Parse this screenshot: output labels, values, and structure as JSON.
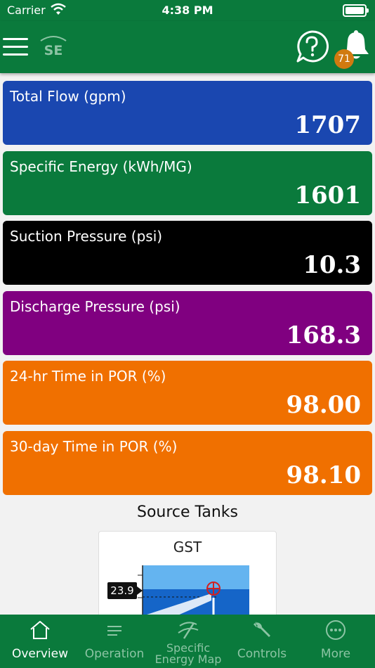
{
  "status_bar": {
    "carrier": "Carrier",
    "time": "4:38 PM"
  },
  "header": {
    "logo_text": "SE",
    "notification_count": "71"
  },
  "cards": [
    {
      "label": "Total Flow (gpm)",
      "value": "1707",
      "color": "#1a47b0"
    },
    {
      "label": "Specific Energy (kWh/MG)",
      "value": "1601",
      "color": "#0a7a3c"
    },
    {
      "label": "Suction Pressure (psi)",
      "value": "10.3",
      "color": "#000000"
    },
    {
      "label": "Discharge Pressure (psi)",
      "value": "168.3",
      "color": "#800080"
    },
    {
      "label": "24-hr Time in POR (%)",
      "value": "98.00",
      "color": "#f07000"
    },
    {
      "label": "30-day Time in POR (%)",
      "value": "98.10",
      "color": "#f07000"
    }
  ],
  "source_tanks": {
    "title": "Source Tanks",
    "tanks": [
      {
        "name": "GST",
        "level": "23.9"
      }
    ]
  },
  "tabbar": {
    "tabs": [
      {
        "label": "Overview",
        "icon": "home-icon",
        "active": true
      },
      {
        "label": "Operation",
        "icon": "list-icon",
        "active": false
      },
      {
        "label": "Specific Energy Map",
        "icon": "energy-map-icon",
        "active": false
      },
      {
        "label": "Controls",
        "icon": "wrench-icon",
        "active": false
      },
      {
        "label": "More",
        "icon": "more-icon",
        "active": false
      }
    ]
  }
}
